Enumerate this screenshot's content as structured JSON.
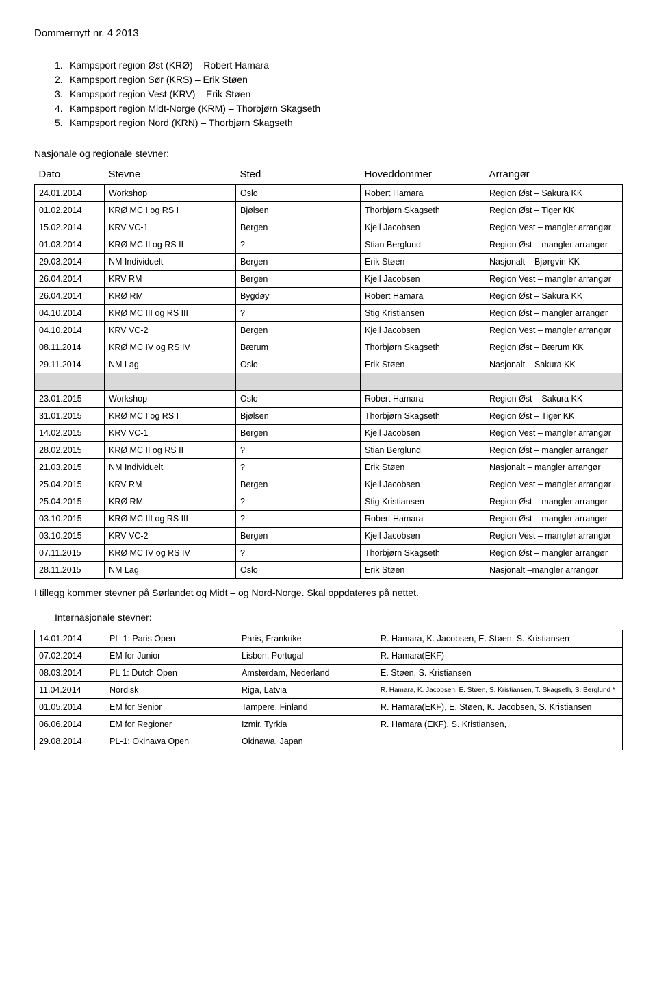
{
  "header": "Dommernytt nr. 4 2013",
  "regions_list": [
    {
      "num": "1.",
      "text": "Kampsport region Øst (KRØ) – Robert Hamara"
    },
    {
      "num": "2.",
      "text": "Kampsport region Sør (KRS) – Erik Støen"
    },
    {
      "num": "3.",
      "text": "Kampsport region Vest (KRV) – Erik Støen"
    },
    {
      "num": "4.",
      "text": "Kampsport region Midt-Norge (KRM) – Thorbjørn Skagseth"
    },
    {
      "num": "5.",
      "text": "Kampsport region Nord (KRN) – Thorbjørn Skagseth"
    }
  ],
  "national_heading": "Nasjonale og regionale stevner:",
  "national_headers": {
    "date": "Dato",
    "event": "Stevne",
    "place": "Sted",
    "judge": "Hoveddommer",
    "org": "Arrangør"
  },
  "national_rows_2014": [
    {
      "date": "24.01.2014",
      "event": "Workshop",
      "place": "Oslo",
      "judge": "Robert Hamara",
      "org": "Region Øst – Sakura KK"
    },
    {
      "date": "01.02.2014",
      "event": "KRØ MC I og RS I",
      "place": "Bjølsen",
      "judge": "Thorbjørn Skagseth",
      "org": "Region Øst – Tiger KK"
    },
    {
      "date": "15.02.2014",
      "event": "KRV VC-1",
      "place": "Bergen",
      "judge": "Kjell Jacobsen",
      "org": "Region Vest – mangler arrangør"
    },
    {
      "date": "01.03.2014",
      "event": "KRØ MC II og RS II",
      "place": "?",
      "judge": "Stian Berglund",
      "org": "Region Øst – mangler arrangør"
    },
    {
      "date": "29.03.2014",
      "event": "NM Individuelt",
      "place": "Bergen",
      "judge": "Erik Støen",
      "org": "Nasjonalt – Bjørgvin KK"
    },
    {
      "date": "26.04.2014",
      "event": "KRV RM",
      "place": "Bergen",
      "judge": "Kjell Jacobsen",
      "org": "Region Vest – mangler arrangør"
    },
    {
      "date": "26.04.2014",
      "event": "KRØ RM",
      "place": "Bygdøy",
      "judge": "Robert Hamara",
      "org": "Region Øst – Sakura KK"
    },
    {
      "date": "04.10.2014",
      "event": "KRØ MC III og RS III",
      "place": "?",
      "judge": "Stig Kristiansen",
      "org": "Region Øst – mangler arrangør"
    },
    {
      "date": "04.10.2014",
      "event": "KRV VC-2",
      "place": "Bergen",
      "judge": "Kjell Jacobsen",
      "org": "Region Vest – mangler arrangør"
    },
    {
      "date": "08.11.2014",
      "event": "KRØ MC IV og RS IV",
      "place": "Bærum",
      "judge": "Thorbjørn Skagseth",
      "org": "Region Øst – Bærum KK"
    },
    {
      "date": "29.11.2014",
      "event": "NM Lag",
      "place": "Oslo",
      "judge": "Erik Støen",
      "org": "Nasjonalt – Sakura KK"
    }
  ],
  "national_rows_2015": [
    {
      "date": "23.01.2015",
      "event": "Workshop",
      "place": "Oslo",
      "judge": "Robert Hamara",
      "org": "Region Øst – Sakura KK"
    },
    {
      "date": "31.01.2015",
      "event": "KRØ MC I og RS I",
      "place": "Bjølsen",
      "judge": "Thorbjørn Skagseth",
      "org": "Region Øst – Tiger KK"
    },
    {
      "date": "14.02.2015",
      "event": "KRV VC-1",
      "place": "Bergen",
      "judge": "Kjell Jacobsen",
      "org": "Region Vest – mangler arrangør"
    },
    {
      "date": "28.02.2015",
      "event": "KRØ MC II og RS II",
      "place": "?",
      "judge": "Stian Berglund",
      "org": "Region Øst – mangler arrangør"
    },
    {
      "date": "21.03.2015",
      "event": "NM Individuelt",
      "place": "?",
      "judge": "Erik Støen",
      "org": "Nasjonalt – mangler arrangør"
    },
    {
      "date": "25.04.2015",
      "event": "KRV RM",
      "place": "Bergen",
      "judge": "Kjell Jacobsen",
      "org": "Region Vest – mangler arrangør"
    },
    {
      "date": "25.04.2015",
      "event": "KRØ RM",
      "place": "?",
      "judge": "Stig Kristiansen",
      "org": "Region Øst – mangler arrangør"
    },
    {
      "date": "03.10.2015",
      "event": "KRØ MC III og RS III",
      "place": "?",
      "judge": "Robert Hamara",
      "org": "Region Øst – mangler arrangør"
    },
    {
      "date": "03.10.2015",
      "event": "KRV VC-2",
      "place": "Bergen",
      "judge": "Kjell Jacobsen",
      "org": "Region Vest – mangler arrangør"
    },
    {
      "date": "07.11.2015",
      "event": "KRØ MC IV og RS IV",
      "place": "?",
      "judge": "Thorbjørn Skagseth",
      "org": "Region Øst – mangler arrangør"
    },
    {
      "date": "28.11.2015",
      "event": "NM Lag",
      "place": "Oslo",
      "judge": "Erik Støen",
      "org": "Nasjonalt –mangler arrangør"
    }
  ],
  "additional_note": "I tillegg kommer stevner på Sørlandet og Midt – og Nord-Norge. Skal oppdateres på nettet.",
  "intl_heading": "Internasjonale stevner:",
  "intl_rows": [
    {
      "date": "14.01.2014",
      "event": "PL-1: Paris Open",
      "place": "Paris, Frankrike",
      "people": "R. Hamara, K. Jacobsen, E. Støen, S. Kristiansen",
      "small": false
    },
    {
      "date": "07.02.2014",
      "event": "EM for Junior",
      "place": "Lisbon, Portugal",
      "people": "R. Hamara(EKF)",
      "small": false
    },
    {
      "date": "08.03.2014",
      "event": "PL 1: Dutch Open",
      "place": "Amsterdam, Nederland",
      "people": "E. Støen, S. Kristiansen",
      "small": false
    },
    {
      "date": "11.04.2014",
      "event": "Nordisk",
      "place": "Riga, Latvia",
      "people": "R. Hamara, K. Jacobsen, E. Støen, S. Kristiansen, T. Skagseth, S. Berglund *",
      "small": true
    },
    {
      "date": "01.05.2014",
      "event": "EM for Senior",
      "place": "Tampere, Finland",
      "people": "R. Hamara(EKF), E. Støen, K. Jacobsen, S. Kristiansen",
      "small": false
    },
    {
      "date": "06.06.2014",
      "event": "EM for Regioner",
      "place": "Izmir, Tyrkia",
      "people": "R. Hamara (EKF), S. Kristiansen,",
      "small": false
    },
    {
      "date": "29.08.2014",
      "event": "PL-1: Okinawa Open",
      "place": "Okinawa, Japan",
      "people": "",
      "small": false
    }
  ]
}
